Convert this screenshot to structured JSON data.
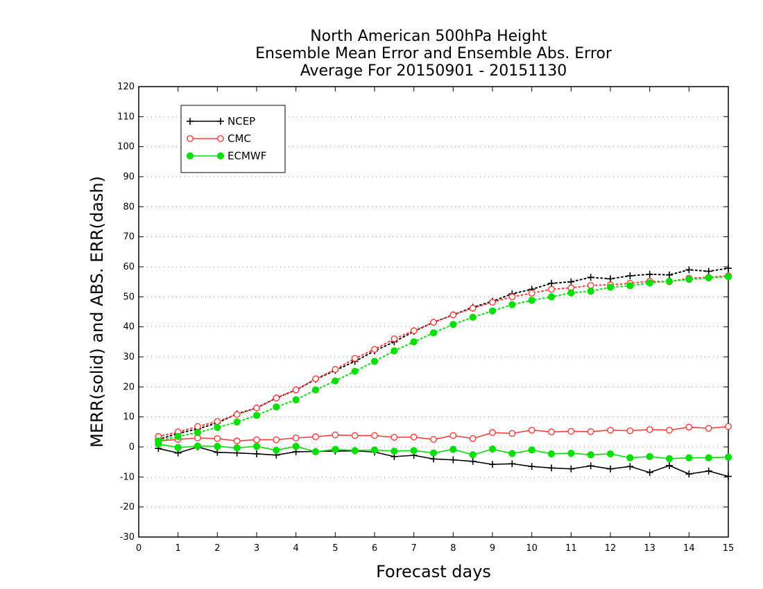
{
  "chart_data": {
    "type": "line",
    "title": [
      "North American 500hPa Height",
      "Ensemble Mean Error and Ensemble Abs. Error",
      "Average For 20150901 - 20151130"
    ],
    "xlabel": "Forecast days",
    "ylabel": "MERR(solid) and ABS. ERR(dash)",
    "xlim": [
      0,
      15
    ],
    "ylim": [
      -30,
      120
    ],
    "xticks": [
      0,
      1,
      2,
      3,
      4,
      5,
      6,
      7,
      8,
      9,
      10,
      11,
      12,
      13,
      14,
      15
    ],
    "yticks": [
      -30,
      -20,
      -10,
      0,
      10,
      20,
      30,
      40,
      50,
      60,
      70,
      80,
      90,
      100,
      110,
      120
    ],
    "grid": "horizontal dotted",
    "legend_position": "top-left",
    "x": [
      0.5,
      1,
      1.5,
      2,
      2.5,
      3,
      3.5,
      4,
      4.5,
      5,
      5.5,
      6,
      6.5,
      7,
      7.5,
      8,
      8.5,
      9,
      9.5,
      10,
      10.5,
      11,
      11.5,
      12,
      12.5,
      13,
      13.5,
      14,
      14.5,
      15
    ],
    "series": [
      {
        "name": "NCEP",
        "color": "#000000",
        "marker": "plus",
        "merr": [
          -0.5,
          -2,
          0,
          -1.8,
          -2,
          -2.3,
          -2.7,
          -1.6,
          -1.5,
          -1.4,
          -1.3,
          -1.7,
          -3.2,
          -2.8,
          -4,
          -4.3,
          -4.8,
          -5.8,
          -5.6,
          -6.5,
          -7,
          -7.3,
          -6.3,
          -7.3,
          -6.5,
          -8.5,
          -6.2,
          -9,
          -8,
          -9.8
        ],
        "abs_err": [
          2.5,
          4.5,
          6,
          8,
          11,
          13,
          16.3,
          19,
          22.5,
          25.5,
          28.5,
          32,
          35,
          38.5,
          41.5,
          44,
          46.5,
          48.5,
          51,
          52.5,
          54.5,
          55,
          56.5,
          56,
          57,
          57.5,
          57.3,
          59,
          58.5,
          59.5
        ]
      },
      {
        "name": "CMC",
        "color": "#ff3a3a",
        "marker": "open-circle",
        "merr": [
          2,
          2.5,
          3,
          2.8,
          2,
          2.4,
          2.4,
          3,
          3.4,
          4,
          3.8,
          3.8,
          3.2,
          3.3,
          2.5,
          3.8,
          2.8,
          4.8,
          4.5,
          5.6,
          5,
          5.2,
          5.1,
          5.6,
          5.4,
          5.8,
          5.6,
          6.6,
          6.2,
          6.8
        ],
        "abs_err": [
          3.5,
          5,
          6.8,
          8.5,
          10.8,
          13,
          16.3,
          19,
          22.7,
          25.8,
          29.5,
          32.5,
          36,
          38.7,
          41.5,
          44,
          46.2,
          48.2,
          50,
          51.2,
          52.5,
          53,
          53.8,
          54,
          54.5,
          55.2,
          55,
          56.2,
          56.5,
          57
        ]
      },
      {
        "name": "ECMWF",
        "color": "#00e000",
        "marker": "filled-circle",
        "merr": [
          1,
          -0.2,
          0.3,
          0.2,
          -0.3,
          0.2,
          -1.1,
          0.2,
          -1.6,
          -0.8,
          -1.2,
          -1,
          -1.4,
          -1.2,
          -2,
          -0.8,
          -2.6,
          -0.7,
          -2.2,
          -1,
          -2.3,
          -2.1,
          -2.6,
          -2.3,
          -3.6,
          -3.2,
          -3.9,
          -3.6,
          -3.6,
          -3.4
        ],
        "abs_err": [
          2,
          3.5,
          4.8,
          6.5,
          8.3,
          10.5,
          13.3,
          15.7,
          19,
          22,
          25.2,
          28.5,
          32,
          35,
          38,
          40.8,
          43.2,
          45.3,
          47.4,
          48.8,
          50,
          51.3,
          51.9,
          53.2,
          53.7,
          54.6,
          55.2,
          55.8,
          56.3,
          56.7
        ]
      }
    ]
  }
}
